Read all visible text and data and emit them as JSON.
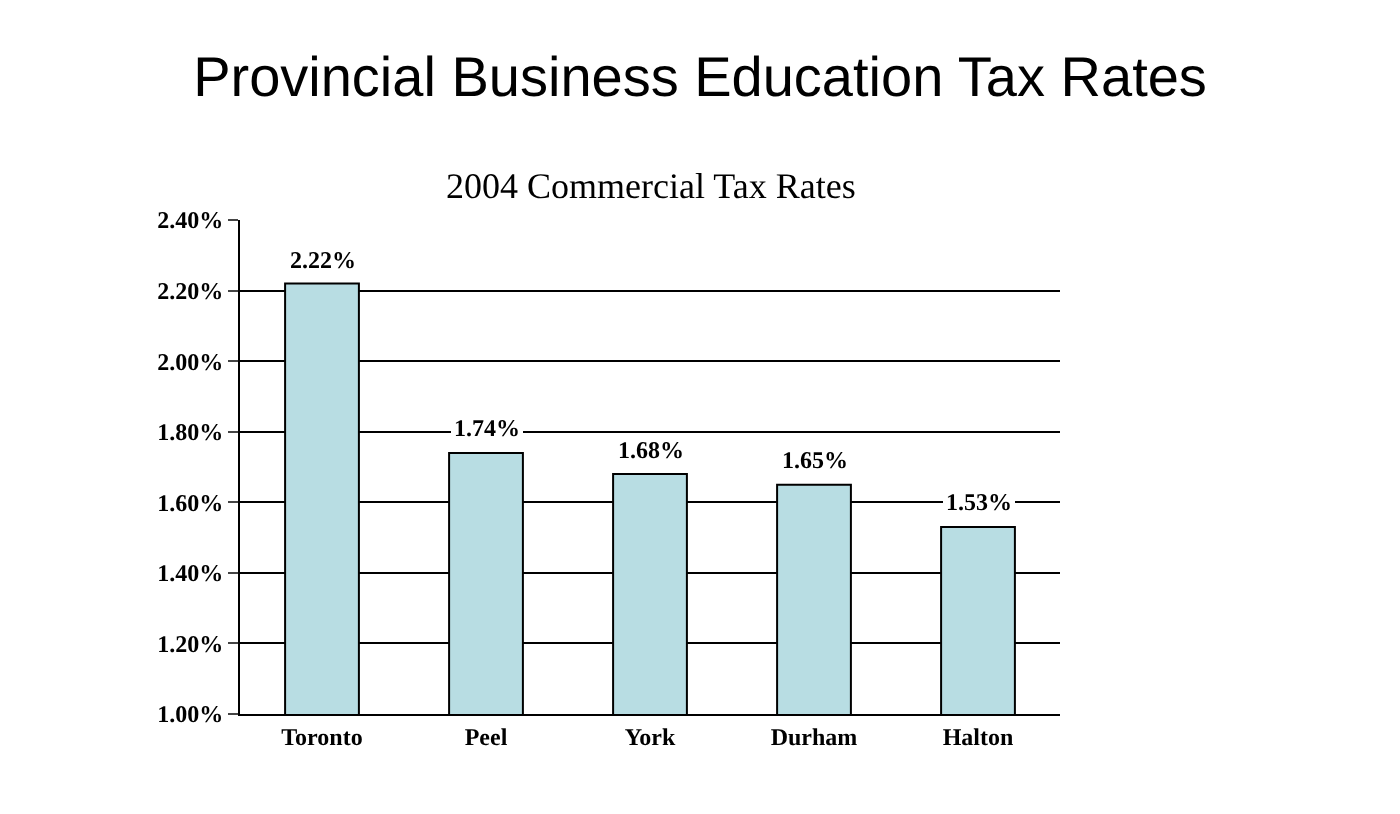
{
  "chart_data": {
    "type": "bar",
    "title": "Provincial Business Education Tax Rates",
    "subtitle": "2004 Commercial Tax Rates",
    "categories": [
      "Toronto",
      "Peel",
      "York",
      "Durham",
      "Halton"
    ],
    "values": [
      2.22,
      1.74,
      1.68,
      1.65,
      1.53
    ],
    "value_labels": [
      "2.22%",
      "1.74%",
      "1.68%",
      "1.65%",
      "1.53%"
    ],
    "color": "#b8dde3",
    "ylim": [
      1.0,
      2.4
    ],
    "yticks": [
      {
        "value": 1.0,
        "label": "1.00%"
      },
      {
        "value": 1.2,
        "label": "1.20%"
      },
      {
        "value": 1.4,
        "label": "1.40%"
      },
      {
        "value": 1.6,
        "label": "1.60%"
      },
      {
        "value": 1.8,
        "label": "1.80%"
      },
      {
        "value": 2.0,
        "label": "2.00%"
      },
      {
        "value": 2.2,
        "label": "2.20%"
      },
      {
        "value": 2.4,
        "label": "2.40%"
      }
    ],
    "grid": "y",
    "legend": false
  }
}
